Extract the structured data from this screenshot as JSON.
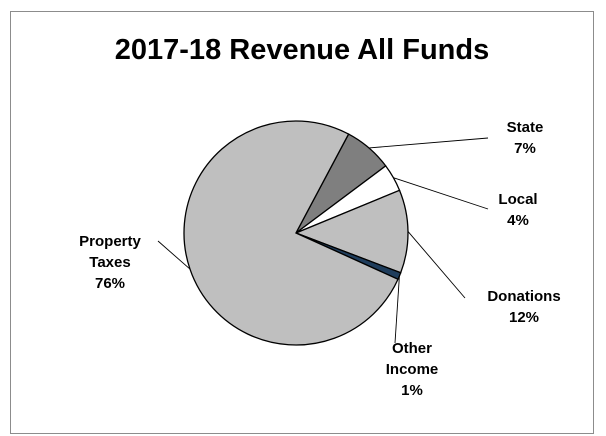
{
  "chart_data": {
    "type": "pie",
    "title": "2017-18 Revenue All Funds",
    "slices": [
      {
        "label": "State",
        "percent": 7,
        "percent_label": "7%",
        "color": "#7f7f7f"
      },
      {
        "label": "Local",
        "percent": 4,
        "percent_label": "4%",
        "color": "#ffffff"
      },
      {
        "label": "Donations",
        "percent": 12,
        "percent_label": "12%",
        "color": "#bfbfbf"
      },
      {
        "label": "Other Income",
        "percent": 1,
        "percent_label": "1%",
        "color": "#1f3d5c"
      },
      {
        "label": "Property Taxes",
        "percent": 76,
        "percent_label": "76%",
        "color": "#bfbfbf"
      }
    ],
    "legend": "none"
  }
}
